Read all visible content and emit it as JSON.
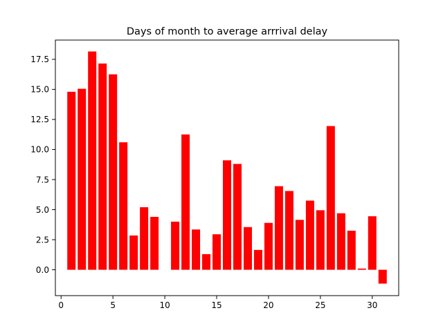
{
  "chart_data": {
    "type": "bar",
    "title": "Days of month to average arrrival delay",
    "xlabel": "",
    "ylabel": "",
    "xlim": [
      -0.55,
      32.55
    ],
    "ylim": [
      -2.15,
      19.1
    ],
    "xticks": [
      0,
      5,
      10,
      15,
      20,
      25,
      30
    ],
    "yticks": [
      0.0,
      2.5,
      5.0,
      7.5,
      10.0,
      12.5,
      15.0,
      17.5
    ],
    "xtick_labels": [
      "0",
      "5",
      "10",
      "15",
      "20",
      "25",
      "30"
    ],
    "ytick_labels": [
      "0.0",
      "2.5",
      "5.0",
      "7.5",
      "10.0",
      "12.5",
      "15.0",
      "17.5"
    ],
    "bar_color": "#ff0000",
    "grid": false,
    "legend": "none",
    "x": [
      1,
      2,
      3,
      4,
      5,
      6,
      7,
      8,
      9,
      10,
      11,
      12,
      13,
      14,
      15,
      16,
      17,
      18,
      19,
      20,
      21,
      22,
      23,
      24,
      25,
      26,
      27,
      28,
      29,
      30,
      31
    ],
    "values": [
      14.8,
      15.05,
      18.15,
      17.15,
      16.25,
      10.6,
      2.85,
      5.2,
      4.4,
      0.0,
      4.0,
      11.25,
      3.35,
      1.3,
      2.95,
      9.1,
      8.8,
      3.55,
      1.65,
      3.9,
      6.95,
      6.55,
      4.15,
      5.75,
      4.95,
      11.95,
      4.7,
      3.25,
      0.1,
      4.45,
      -1.15
    ]
  }
}
